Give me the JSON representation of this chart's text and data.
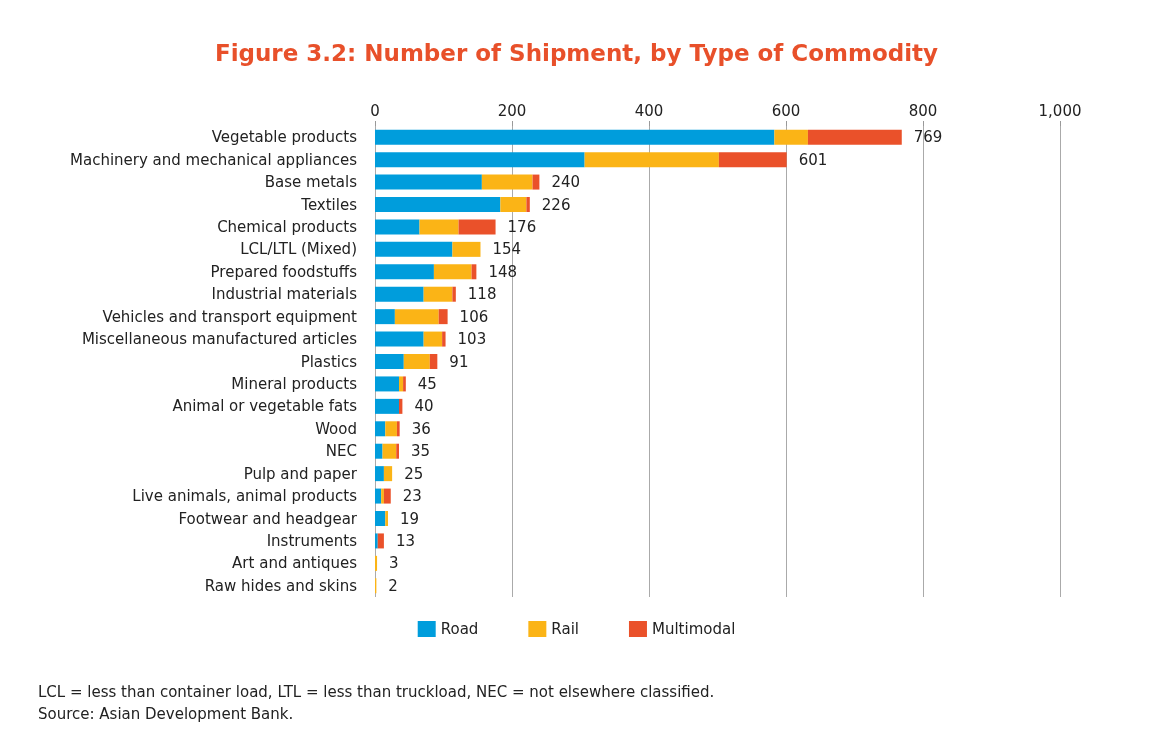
{
  "chart_data": {
    "type": "bar",
    "orientation": "horizontal",
    "stacked": true,
    "title": "Figure 3.2: Number of Shipment, by Type of Commodity",
    "categories": [
      "Vegetable products",
      "Machinery and mechanical appliances",
      "Base metals",
      "Textiles",
      "Chemical products",
      "LCL/LTL (Mixed)",
      "Prepared foodstuffs",
      "Industrial materials",
      "Vehicles and transport equipment",
      "Miscellaneous manufactured articles",
      "Plastics",
      "Mineral products",
      "Animal or vegetable fats",
      "Wood",
      "NEC",
      "Pulp and paper",
      "Live animals, animal products",
      "Footwear and headgear",
      "Instruments",
      "Art and antiques",
      "Raw hides and skins"
    ],
    "series": [
      {
        "name": "Road",
        "color": "#009ddc",
        "values": [
          583,
          306,
          156,
          183,
          65,
          113,
          86,
          71,
          29,
          71,
          42,
          35,
          35,
          15,
          11,
          13,
          9,
          15,
          4,
          0,
          0
        ]
      },
      {
        "name": "Rail",
        "color": "#fbb416",
        "values": [
          49,
          196,
          74,
          38,
          57,
          41,
          55,
          42,
          64,
          27,
          38,
          6,
          0,
          17,
          20,
          12,
          4,
          4,
          0,
          3,
          2
        ]
      },
      {
        "name": "Multimodal",
        "color": "#ea512a",
        "values": [
          137,
          99,
          10,
          5,
          54,
          0,
          7,
          5,
          13,
          5,
          11,
          4,
          5,
          4,
          4,
          0,
          10,
          0,
          9,
          0,
          0
        ]
      }
    ],
    "totals": [
      "769",
      "601",
      "240",
      "226",
      "176",
      "154",
      "148",
      "118",
      "106",
      "103",
      "91",
      "45",
      "40",
      "36",
      "35",
      "25",
      "23",
      "19",
      "13",
      "3",
      "2"
    ],
    "xlim": [
      0,
      1000
    ],
    "xticks": [
      0,
      200,
      400,
      600,
      800,
      {
        "value": 1000,
        "label": "1,000"
      }
    ],
    "grid": "x",
    "legend": "bottom",
    "annotations": [
      "LCL = less than container load, LTL = less than truckload, NEC = not elsewhere classified.",
      "Source: Asian Development Bank."
    ]
  }
}
